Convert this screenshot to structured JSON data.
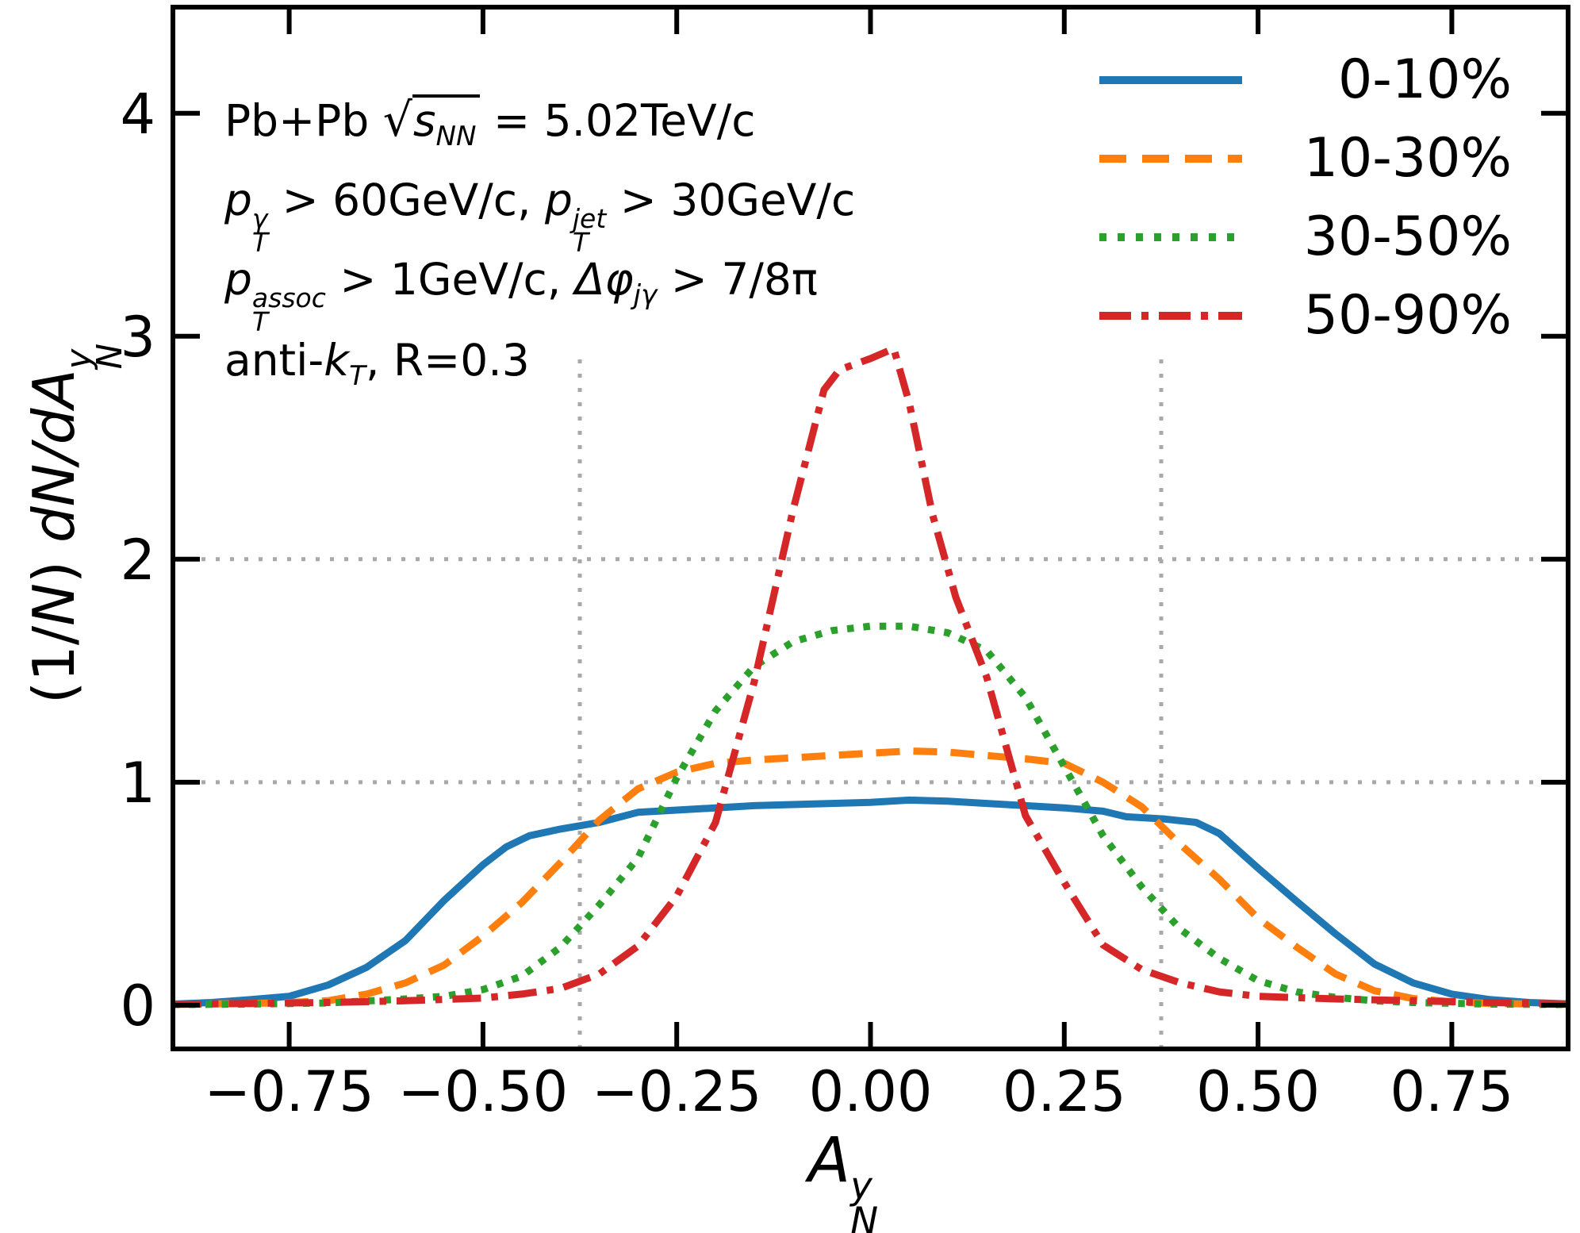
{
  "colors": {
    "blue": "#1f77b4",
    "orange": "#ff7f0e",
    "green": "#2ca02c",
    "red": "#d62728",
    "grid": "#a9a9a9",
    "axis": "#000000",
    "background": "#ffffff"
  },
  "annotations": {
    "line1": {
      "prefix": "Pb+Pb ",
      "sqrt": "√",
      "s": "s",
      "snn": "NN",
      "suffix": " = 5.02TeV/c"
    },
    "line2": {
      "p1": "p",
      "p1sup": "γ",
      "p1sub": "T",
      "mid": " > 60GeV/c, ",
      "p2": "p",
      "p2sup": "jet",
      "p2sub": "T",
      "suffix": " > 30GeV/c"
    },
    "line3": {
      "p": "p",
      "psup": "assoc",
      "psub": "T",
      "mid": " > 1GeV/c, ",
      "dphi": "Δφ",
      "dphisub": "jγ",
      "suffix": " >  7/8π"
    },
    "line4": {
      "prefix": "anti-",
      "k": "k",
      "ksub": "T",
      "suffix": ", R=0.3"
    }
  },
  "axis_titles": {
    "x": {
      "base": "A",
      "sup": "y",
      "sub": "N"
    },
    "y": {
      "p1": "(1/",
      "n": "N",
      "p2": ")",
      "d": " dN/dA",
      "sup": "y",
      "sub": "N"
    }
  },
  "chart_data": {
    "type": "line",
    "title": "",
    "xlabel": "A_N^y",
    "ylabel": "(1/N) dN/dA_N^y",
    "xlim": [
      -0.9,
      0.9
    ],
    "ylim": [
      -0.196,
      4.476
    ],
    "grid": "partial-dotted",
    "legend_position": "upper right",
    "xticks": [
      {
        "v": -0.75,
        "label": "−0.75"
      },
      {
        "v": -0.5,
        "label": "−0.50"
      },
      {
        "v": -0.25,
        "label": "−0.25"
      },
      {
        "v": 0.0,
        "label": "0.00"
      },
      {
        "v": 0.25,
        "label": "0.25"
      },
      {
        "v": 0.5,
        "label": "0.50"
      },
      {
        "v": 0.75,
        "label": "0.75"
      }
    ],
    "yticks": [
      {
        "v": 0,
        "label": "0"
      },
      {
        "v": 1,
        "label": "1"
      },
      {
        "v": 2,
        "label": "2"
      },
      {
        "v": 3,
        "label": "3"
      },
      {
        "v": 4,
        "label": "4"
      }
    ],
    "grid_hlines": [
      1,
      2
    ],
    "guide_vlines": {
      "x": [
        -0.375,
        0.375
      ],
      "y_top": 2.93
    },
    "series": [
      {
        "name": "0-10%",
        "color": "#1f77b4",
        "style": "solid",
        "points": [
          [
            -0.9,
            0.005
          ],
          [
            -0.85,
            0.012
          ],
          [
            -0.8,
            0.025
          ],
          [
            -0.75,
            0.04
          ],
          [
            -0.7,
            0.09
          ],
          [
            -0.65,
            0.17
          ],
          [
            -0.6,
            0.29
          ],
          [
            -0.55,
            0.47
          ],
          [
            -0.5,
            0.63
          ],
          [
            -0.47,
            0.71
          ],
          [
            -0.44,
            0.76
          ],
          [
            -0.4,
            0.79
          ],
          [
            -0.35,
            0.82
          ],
          [
            -0.3,
            0.865
          ],
          [
            -0.25,
            0.875
          ],
          [
            -0.2,
            0.885
          ],
          [
            -0.15,
            0.895
          ],
          [
            -0.1,
            0.9
          ],
          [
            -0.05,
            0.905
          ],
          [
            0.0,
            0.91
          ],
          [
            0.05,
            0.92
          ],
          [
            0.1,
            0.915
          ],
          [
            0.15,
            0.905
          ],
          [
            0.2,
            0.895
          ],
          [
            0.25,
            0.885
          ],
          [
            0.3,
            0.87
          ],
          [
            0.33,
            0.845
          ],
          [
            0.38,
            0.835
          ],
          [
            0.42,
            0.82
          ],
          [
            0.45,
            0.77
          ],
          [
            0.5,
            0.615
          ],
          [
            0.55,
            0.465
          ],
          [
            0.6,
            0.32
          ],
          [
            0.65,
            0.185
          ],
          [
            0.7,
            0.1
          ],
          [
            0.75,
            0.05
          ],
          [
            0.8,
            0.025
          ],
          [
            0.85,
            0.012
          ],
          [
            0.9,
            0.006
          ]
        ]
      },
      {
        "name": "10-30%",
        "color": "#ff7f0e",
        "style": "dashed",
        "points": [
          [
            -0.9,
            0.004
          ],
          [
            -0.8,
            0.008
          ],
          [
            -0.75,
            0.012
          ],
          [
            -0.7,
            0.02
          ],
          [
            -0.65,
            0.05
          ],
          [
            -0.6,
            0.1
          ],
          [
            -0.55,
            0.18
          ],
          [
            -0.5,
            0.31
          ],
          [
            -0.45,
            0.46
          ],
          [
            -0.4,
            0.64
          ],
          [
            -0.35,
            0.83
          ],
          [
            -0.3,
            0.97
          ],
          [
            -0.25,
            1.045
          ],
          [
            -0.2,
            1.085
          ],
          [
            -0.15,
            1.1
          ],
          [
            -0.1,
            1.11
          ],
          [
            -0.05,
            1.12
          ],
          [
            0.0,
            1.13
          ],
          [
            0.05,
            1.14
          ],
          [
            0.1,
            1.135
          ],
          [
            0.15,
            1.12
          ],
          [
            0.2,
            1.105
          ],
          [
            0.25,
            1.085
          ],
          [
            0.3,
            1.0
          ],
          [
            0.35,
            0.89
          ],
          [
            0.4,
            0.72
          ],
          [
            0.45,
            0.565
          ],
          [
            0.5,
            0.39
          ],
          [
            0.55,
            0.26
          ],
          [
            0.6,
            0.14
          ],
          [
            0.65,
            0.065
          ],
          [
            0.7,
            0.03
          ],
          [
            0.75,
            0.015
          ],
          [
            0.8,
            0.008
          ],
          [
            0.9,
            0.004
          ]
        ]
      },
      {
        "name": "30-50%",
        "color": "#2ca02c",
        "style": "dotted",
        "points": [
          [
            -0.9,
            0.003
          ],
          [
            -0.8,
            0.005
          ],
          [
            -0.7,
            0.01
          ],
          [
            -0.6,
            0.028
          ],
          [
            -0.55,
            0.04
          ],
          [
            -0.5,
            0.07
          ],
          [
            -0.45,
            0.13
          ],
          [
            -0.4,
            0.26
          ],
          [
            -0.35,
            0.45
          ],
          [
            -0.3,
            0.66
          ],
          [
            -0.25,
            1.02
          ],
          [
            -0.2,
            1.32
          ],
          [
            -0.15,
            1.52
          ],
          [
            -0.1,
            1.63
          ],
          [
            -0.05,
            1.68
          ],
          [
            0.0,
            1.7
          ],
          [
            0.05,
            1.7
          ],
          [
            0.1,
            1.67
          ],
          [
            0.15,
            1.59
          ],
          [
            0.2,
            1.38
          ],
          [
            0.25,
            1.07
          ],
          [
            0.3,
            0.76
          ],
          [
            0.35,
            0.53
          ],
          [
            0.4,
            0.34
          ],
          [
            0.45,
            0.21
          ],
          [
            0.5,
            0.11
          ],
          [
            0.55,
            0.06
          ],
          [
            0.6,
            0.035
          ],
          [
            0.65,
            0.02
          ],
          [
            0.7,
            0.012
          ],
          [
            0.8,
            0.005
          ],
          [
            0.9,
            0.003
          ]
        ]
      },
      {
        "name": "50-90%",
        "color": "#d62728",
        "style": "dashdot",
        "points": [
          [
            -0.9,
            0.004
          ],
          [
            -0.8,
            0.008
          ],
          [
            -0.7,
            0.012
          ],
          [
            -0.6,
            0.02
          ],
          [
            -0.5,
            0.032
          ],
          [
            -0.45,
            0.05
          ],
          [
            -0.4,
            0.075
          ],
          [
            -0.35,
            0.14
          ],
          [
            -0.3,
            0.265
          ],
          [
            -0.25,
            0.49
          ],
          [
            -0.2,
            0.82
          ],
          [
            -0.15,
            1.45
          ],
          [
            -0.1,
            2.22
          ],
          [
            -0.06,
            2.76
          ],
          [
            -0.04,
            2.85
          ],
          [
            0.0,
            2.9
          ],
          [
            0.03,
            2.945
          ],
          [
            0.05,
            2.7
          ],
          [
            0.08,
            2.2
          ],
          [
            0.11,
            1.83
          ],
          [
            0.15,
            1.47
          ],
          [
            0.2,
            0.85
          ],
          [
            0.25,
            0.55
          ],
          [
            0.3,
            0.27
          ],
          [
            0.35,
            0.16
          ],
          [
            0.4,
            0.1
          ],
          [
            0.45,
            0.06
          ],
          [
            0.5,
            0.04
          ],
          [
            0.6,
            0.028
          ],
          [
            0.7,
            0.02
          ],
          [
            0.8,
            0.012
          ],
          [
            0.9,
            0.006
          ]
        ]
      }
    ]
  }
}
